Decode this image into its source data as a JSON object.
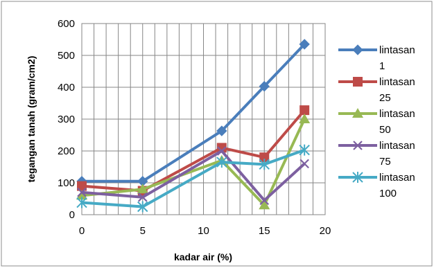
{
  "chart_data": {
    "type": "line",
    "title": "",
    "xlabel": "kadar air (%)",
    "ylabel": "tegangan tanah (gram/cm2)",
    "xlim": [
      0,
      20
    ],
    "ylim": [
      0,
      600
    ],
    "x_ticks": [
      0,
      5,
      10,
      15,
      20
    ],
    "y_ticks": [
      0,
      100,
      200,
      300,
      400,
      500,
      600
    ],
    "x_tick_labels": [
      "0",
      "5",
      "10",
      "15",
      "20"
    ],
    "y_tick_labels": [
      "0",
      "100",
      "200",
      "300",
      "400",
      "500",
      "600"
    ],
    "x_minor_step": 1,
    "grid": true,
    "legend_position": "right",
    "x": [
      0,
      5,
      11.5,
      15,
      18.3
    ],
    "series": [
      {
        "name": "lintasan 1",
        "label_lines": [
          "lintasan",
          "1"
        ],
        "color": "#4a7ebb",
        "marker": "diamond",
        "values": [
          105,
          105,
          263,
          403,
          535
        ]
      },
      {
        "name": "lintasan 25",
        "label_lines": [
          "lintasan",
          "25"
        ],
        "color": "#be4b48",
        "marker": "square",
        "values": [
          90,
          75,
          210,
          180,
          328
        ]
      },
      {
        "name": "lintasan 50",
        "label_lines": [
          "lintasan",
          "50"
        ],
        "color": "#98b954",
        "marker": "triangle",
        "values": [
          60,
          80,
          170,
          30,
          300
        ]
      },
      {
        "name": "lintasan 75",
        "label_lines": [
          "lintasan",
          "75"
        ],
        "color": "#7d60a0",
        "marker": "x",
        "values": [
          70,
          55,
          200,
          45,
          160
        ]
      },
      {
        "name": "lintasan 100",
        "label_lines": [
          "lintasan",
          "100"
        ],
        "color": "#46aac5",
        "marker": "star",
        "values": [
          38,
          25,
          165,
          158,
          203
        ]
      }
    ]
  }
}
